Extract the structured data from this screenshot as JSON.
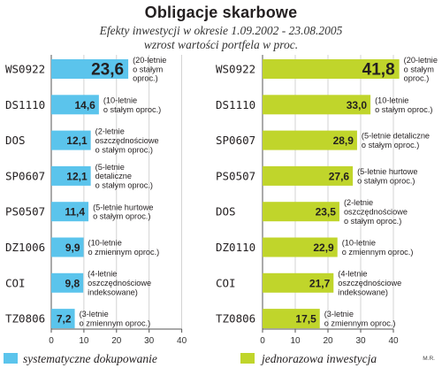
{
  "title": "Obligacje skarbowe",
  "subtitle_line1": "Efekty inwestycji  w okresie 1.09.2002 - 23.08.2005",
  "subtitle_line2": "wzrost wartości portfela w proc.",
  "credit": "M.R.",
  "colors": {
    "left_bar": "#5bc4ec",
    "right_bar": "#c0d52b",
    "highlight_value": "#d8334f"
  },
  "chart_data": [
    {
      "type": "bar",
      "orientation": "horizontal",
      "legend_label": "systematyczne dokupowanie",
      "xlim": [
        0,
        40
      ],
      "x_ticks": [
        0,
        10,
        20,
        30,
        40
      ],
      "grid": true,
      "categories": [
        "WS0922",
        "DS1110",
        "DOS",
        "SP0607",
        "PS0507",
        "DZ1006",
        "COI",
        "TZ0806"
      ],
      "values": [
        23.6,
        14.6,
        12.1,
        12.1,
        11.4,
        9.9,
        9.8,
        7.2
      ],
      "value_labels": [
        "23,6",
        "14,6",
        "12,1",
        "12,1",
        "11,4",
        "9,9",
        "9,8",
        "7,2"
      ],
      "notes": [
        [
          "(20-letnie",
          "o stałym",
          "oproc.)"
        ],
        [
          "(10-letnie",
          "o stałym oproc.)"
        ],
        [
          "(2-letnie",
          "oszczędnościowe",
          "o stałym oproc.)"
        ],
        [
          "(5-letnie",
          "detaliczne",
          "o stałym oproc.)"
        ],
        [
          "(5-letnie hurtowe",
          "o stałym oproc.)"
        ],
        [
          "(10-letnie",
          "o zmiennym oproc.)"
        ],
        [
          "(4-letnie",
          "oszczędnościowe",
          "indeksowane)"
        ],
        [
          "(3-letnie",
          "o zmiennym oproc.)"
        ]
      ]
    },
    {
      "type": "bar",
      "orientation": "horizontal",
      "legend_label": "jednorazowa inwestycja",
      "xlim": [
        0,
        40
      ],
      "x_ticks": [
        0,
        10,
        20,
        30,
        40
      ],
      "grid": true,
      "categories": [
        "WS0922",
        "DS1110",
        "SP0607",
        "PS0507",
        "DOS",
        "DZ0110",
        "COI",
        "TZ0806"
      ],
      "values": [
        41.8,
        33.0,
        28.9,
        27.6,
        23.5,
        22.9,
        21.7,
        17.5
      ],
      "value_labels": [
        "41,8",
        "33,0",
        "28,9",
        "27,6",
        "23,5",
        "22,9",
        "21,7",
        "17,5"
      ],
      "notes": [
        [
          "(20-letnie",
          "o stałym",
          "oproc.)"
        ],
        [
          "(10-letnie",
          "o stałym oproc.)"
        ],
        [
          "(5-letnie detaliczne",
          "o stałym oproc.)"
        ],
        [
          "(5-letnie hurtowe",
          "o stałym oproc.)"
        ],
        [
          "(2-letnie",
          "oszczędnościowe",
          "o stałym oproc.)"
        ],
        [
          "(10-letnie",
          "o zmiennym oproc.)"
        ],
        [
          "(4-letnie",
          "oszczędnościowe",
          "indeksowane)"
        ],
        [
          "(3-letnie",
          "o zmiennym oproc.)"
        ]
      ]
    }
  ]
}
